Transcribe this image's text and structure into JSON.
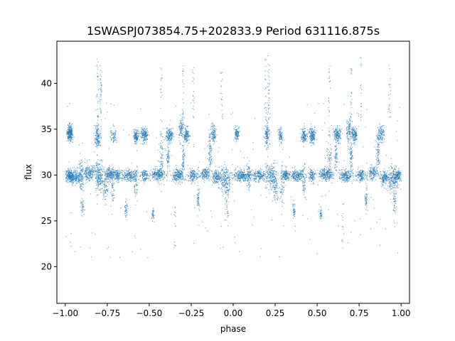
{
  "chart_data": {
    "type": "scatter",
    "title": "1SWASPJ073854.75+202833.9 Period 631116.875s",
    "xlabel": "phase",
    "ylabel": "flux",
    "xlim": [
      -1.05,
      1.05
    ],
    "ylim": [
      16,
      44.6
    ],
    "xticks": [
      -1.0,
      -0.75,
      -0.5,
      -0.25,
      0.0,
      0.25,
      0.5,
      0.75,
      1.0
    ],
    "xtick_labels": [
      "−1.00",
      "−0.75",
      "−0.50",
      "−0.25",
      "0.00",
      "0.25",
      "0.50",
      "0.75",
      "1.00"
    ],
    "yticks": [
      20,
      25,
      30,
      35,
      40
    ],
    "ytick_labels": [
      "20",
      "25",
      "30",
      "35",
      "40"
    ],
    "grid": false,
    "series_color": "#1f77b4",
    "point_style": "tiny dots, semi-transparent",
    "x_domain": [
      -1.0,
      1.0
    ],
    "period_in_phase": 1.0,
    "clumps": [
      {
        "x": -0.975,
        "y": 34.6,
        "sx": 0.013,
        "sy": 0.6,
        "n": 260
      },
      {
        "x": -0.975,
        "y": 30.0,
        "sx": 0.018,
        "sy": 0.45,
        "n": 220
      },
      {
        "x": -0.94,
        "y": 29.8,
        "sx": 0.03,
        "sy": 0.55,
        "n": 180
      },
      {
        "x": -0.91,
        "y": 30.0,
        "sx": 0.012,
        "sy": 1.6,
        "n": 90
      },
      {
        "x": -0.9,
        "y": 26.5,
        "sx": 0.006,
        "sy": 0.7,
        "n": 35
      },
      {
        "x": -0.86,
        "y": 30.3,
        "sx": 0.03,
        "sy": 0.6,
        "n": 200
      },
      {
        "x": -0.81,
        "y": 34.2,
        "sx": 0.012,
        "sy": 1.0,
        "n": 150
      },
      {
        "x": -0.8,
        "y": 30.0,
        "sx": 0.02,
        "sy": 1.1,
        "n": 220
      },
      {
        "x": -0.79,
        "y": 38.8,
        "sx": 0.006,
        "sy": 2.5,
        "n": 40
      },
      {
        "x": -0.76,
        "y": 28.8,
        "sx": 0.012,
        "sy": 1.1,
        "n": 80
      },
      {
        "x": -0.735,
        "y": 30.1,
        "sx": 0.02,
        "sy": 0.5,
        "n": 170
      },
      {
        "x": -0.72,
        "y": 29.0,
        "sx": 0.008,
        "sy": 1.5,
        "n": 60
      },
      {
        "x": -0.715,
        "y": 34.4,
        "sx": 0.012,
        "sy": 0.7,
        "n": 70
      },
      {
        "x": -0.69,
        "y": 30.0,
        "sx": 0.012,
        "sy": 0.5,
        "n": 110
      },
      {
        "x": -0.64,
        "y": 26.2,
        "sx": 0.006,
        "sy": 0.7,
        "n": 40
      },
      {
        "x": -0.62,
        "y": 30.0,
        "sx": 0.035,
        "sy": 0.45,
        "n": 220
      },
      {
        "x": -0.58,
        "y": 34.3,
        "sx": 0.012,
        "sy": 0.6,
        "n": 130
      },
      {
        "x": -0.58,
        "y": 29.3,
        "sx": 0.008,
        "sy": 1.3,
        "n": 60
      },
      {
        "x": -0.53,
        "y": 34.4,
        "sx": 0.015,
        "sy": 0.6,
        "n": 170
      },
      {
        "x": -0.53,
        "y": 30.0,
        "sx": 0.015,
        "sy": 0.5,
        "n": 110
      },
      {
        "x": -0.48,
        "y": 25.8,
        "sx": 0.005,
        "sy": 0.5,
        "n": 35
      },
      {
        "x": -0.45,
        "y": 30.1,
        "sx": 0.03,
        "sy": 0.45,
        "n": 220
      },
      {
        "x": -0.43,
        "y": 31.5,
        "sx": 0.01,
        "sy": 2.0,
        "n": 80
      },
      {
        "x": -0.38,
        "y": 34.4,
        "sx": 0.015,
        "sy": 0.6,
        "n": 160
      },
      {
        "x": -0.39,
        "y": 32.0,
        "sx": 0.006,
        "sy": 1.0,
        "n": 60
      },
      {
        "x": -0.33,
        "y": 30.0,
        "sx": 0.03,
        "sy": 0.5,
        "n": 220
      },
      {
        "x": -0.31,
        "y": 35.0,
        "sx": 0.012,
        "sy": 1.1,
        "n": 110
      },
      {
        "x": -0.3,
        "y": 32.0,
        "sx": 0.006,
        "sy": 1.3,
        "n": 60
      },
      {
        "x": -0.28,
        "y": 34.4,
        "sx": 0.012,
        "sy": 0.6,
        "n": 130
      },
      {
        "x": -0.24,
        "y": 30.0,
        "sx": 0.02,
        "sy": 0.5,
        "n": 140
      },
      {
        "x": -0.21,
        "y": 27.5,
        "sx": 0.006,
        "sy": 1.1,
        "n": 50
      },
      {
        "x": -0.17,
        "y": 30.2,
        "sx": 0.02,
        "sy": 0.5,
        "n": 140
      },
      {
        "x": -0.14,
        "y": 32.8,
        "sx": 0.008,
        "sy": 1.6,
        "n": 90
      },
      {
        "x": -0.12,
        "y": 34.6,
        "sx": 0.012,
        "sy": 0.7,
        "n": 100
      },
      {
        "x": -0.1,
        "y": 29.8,
        "sx": 0.02,
        "sy": 0.5,
        "n": 160
      },
      {
        "x": -0.05,
        "y": 29.6,
        "sx": 0.025,
        "sy": 1.0,
        "n": 200
      },
      {
        "x": -0.04,
        "y": 27.0,
        "sx": 0.008,
        "sy": 1.5,
        "n": 40
      },
      {
        "x": 0.02,
        "y": 34.6,
        "sx": 0.01,
        "sy": 0.5,
        "n": 110
      },
      {
        "x": 0.05,
        "y": 30.0,
        "sx": 0.04,
        "sy": 0.45,
        "n": 260
      },
      {
        "x": 0.09,
        "y": 29.8,
        "sx": 0.01,
        "sy": 1.0,
        "n": 70
      },
      {
        "x": 0.15,
        "y": 30.0,
        "sx": 0.03,
        "sy": 0.45,
        "n": 180
      },
      {
        "x": 0.2,
        "y": 34.4,
        "sx": 0.012,
        "sy": 1.0,
        "n": 130
      },
      {
        "x": 0.21,
        "y": 38.8,
        "sx": 0.006,
        "sy": 2.5,
        "n": 40
      },
      {
        "x": 0.22,
        "y": 30.0,
        "sx": 0.025,
        "sy": 1.0,
        "n": 200
      },
      {
        "x": 0.25,
        "y": 28.8,
        "sx": 0.012,
        "sy": 1.1,
        "n": 80
      },
      {
        "x": 0.28,
        "y": 34.4,
        "sx": 0.012,
        "sy": 0.7,
        "n": 80
      },
      {
        "x": 0.29,
        "y": 29.0,
        "sx": 0.008,
        "sy": 1.5,
        "n": 60
      },
      {
        "x": 0.31,
        "y": 30.0,
        "sx": 0.015,
        "sy": 0.5,
        "n": 140
      },
      {
        "x": 0.36,
        "y": 26.2,
        "sx": 0.006,
        "sy": 0.7,
        "n": 40
      },
      {
        "x": 0.38,
        "y": 30.0,
        "sx": 0.035,
        "sy": 0.45,
        "n": 220
      },
      {
        "x": 0.42,
        "y": 34.3,
        "sx": 0.012,
        "sy": 0.6,
        "n": 130
      },
      {
        "x": 0.42,
        "y": 29.3,
        "sx": 0.008,
        "sy": 1.3,
        "n": 60
      },
      {
        "x": 0.47,
        "y": 34.4,
        "sx": 0.015,
        "sy": 0.6,
        "n": 170
      },
      {
        "x": 0.47,
        "y": 30.0,
        "sx": 0.015,
        "sy": 0.5,
        "n": 110
      },
      {
        "x": 0.52,
        "y": 25.8,
        "sx": 0.005,
        "sy": 0.5,
        "n": 35
      },
      {
        "x": 0.55,
        "y": 30.1,
        "sx": 0.03,
        "sy": 0.45,
        "n": 220
      },
      {
        "x": 0.57,
        "y": 31.5,
        "sx": 0.01,
        "sy": 2.0,
        "n": 80
      },
      {
        "x": 0.62,
        "y": 34.4,
        "sx": 0.015,
        "sy": 0.6,
        "n": 160
      },
      {
        "x": 0.61,
        "y": 32.0,
        "sx": 0.006,
        "sy": 1.0,
        "n": 60
      },
      {
        "x": 0.67,
        "y": 30.0,
        "sx": 0.03,
        "sy": 0.5,
        "n": 220
      },
      {
        "x": 0.69,
        "y": 35.0,
        "sx": 0.012,
        "sy": 1.1,
        "n": 110
      },
      {
        "x": 0.7,
        "y": 32.0,
        "sx": 0.006,
        "sy": 1.3,
        "n": 60
      },
      {
        "x": 0.72,
        "y": 34.4,
        "sx": 0.012,
        "sy": 0.6,
        "n": 130
      },
      {
        "x": 0.76,
        "y": 30.0,
        "sx": 0.02,
        "sy": 0.5,
        "n": 140
      },
      {
        "x": 0.79,
        "y": 27.5,
        "sx": 0.006,
        "sy": 1.1,
        "n": 50
      },
      {
        "x": 0.83,
        "y": 30.2,
        "sx": 0.02,
        "sy": 0.5,
        "n": 140
      },
      {
        "x": 0.86,
        "y": 32.8,
        "sx": 0.008,
        "sy": 1.6,
        "n": 90
      },
      {
        "x": 0.88,
        "y": 34.6,
        "sx": 0.012,
        "sy": 0.7,
        "n": 100
      },
      {
        "x": 0.9,
        "y": 29.8,
        "sx": 0.02,
        "sy": 0.5,
        "n": 160
      },
      {
        "x": 0.95,
        "y": 29.6,
        "sx": 0.025,
        "sy": 1.0,
        "n": 200
      },
      {
        "x": 0.96,
        "y": 27.0,
        "sx": 0.008,
        "sy": 1.5,
        "n": 40
      },
      {
        "x": 0.98,
        "y": 30.0,
        "sx": 0.015,
        "sy": 0.5,
        "n": 120
      }
    ],
    "streaks": [
      {
        "x": -0.81,
        "y0": 36,
        "y1": 43,
        "n": 25
      },
      {
        "x": -0.43,
        "y0": 33,
        "y1": 42,
        "n": 25
      },
      {
        "x": -0.35,
        "y0": 22,
        "y1": 27,
        "n": 15
      },
      {
        "x": -0.3,
        "y0": 36,
        "y1": 42,
        "n": 20
      },
      {
        "x": -0.24,
        "y0": 36,
        "y1": 43,
        "n": 20
      },
      {
        "x": 0.19,
        "y0": 36,
        "y1": 43,
        "n": 25
      },
      {
        "x": 0.57,
        "y0": 33,
        "y1": 42,
        "n": 25
      },
      {
        "x": 0.65,
        "y0": 22,
        "y1": 27,
        "n": 15
      },
      {
        "x": 0.7,
        "y0": 36,
        "y1": 42,
        "n": 20
      },
      {
        "x": 0.76,
        "y0": 36,
        "y1": 43,
        "n": 20
      },
      {
        "x": 0.93,
        "y0": 36,
        "y1": 42,
        "n": 20
      },
      {
        "x": -0.07,
        "y0": 36,
        "y1": 42,
        "n": 20
      }
    ]
  }
}
